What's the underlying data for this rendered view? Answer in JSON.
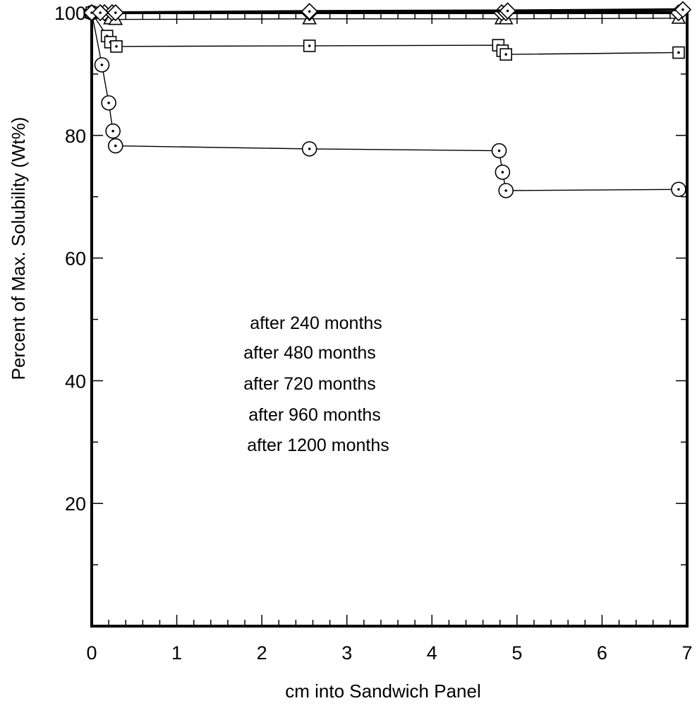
{
  "chart_data": {
    "type": "line",
    "title": "",
    "xlabel": "cm into Sandwich Panel",
    "ylabel": "Percent of Max. Solubility (Wt%)",
    "xlim": [
      0,
      7
    ],
    "ylim": [
      0,
      100
    ],
    "xticks": [
      0,
      1,
      2,
      3,
      4,
      5,
      6,
      7
    ],
    "xtick_labels": [
      "0",
      "1",
      "2",
      "3",
      "4",
      "5",
      "6",
      "7"
    ],
    "yticks": [
      20,
      40,
      60,
      80,
      100
    ],
    "ytick_labels": [
      "20",
      "40",
      "60",
      "80",
      "100"
    ],
    "grid": false,
    "legend": {
      "placement": "center-left",
      "entries": [
        "after 240 months",
        "after 480 months",
        "after 720 months",
        "after 960 months",
        "after 1200 months"
      ],
      "markers_shown": false
    },
    "series": [
      {
        "name": "after 240 months",
        "marker": "circle-dot",
        "points": [
          [
            0.0,
            100.0
          ],
          [
            0.12,
            91.5
          ],
          [
            0.2,
            85.3
          ],
          [
            0.25,
            80.7
          ],
          [
            0.28,
            78.3
          ],
          [
            2.56,
            77.8
          ],
          [
            4.79,
            77.5
          ],
          [
            4.83,
            74.0
          ],
          [
            4.87,
            71.0
          ],
          [
            6.9,
            71.2
          ]
        ]
      },
      {
        "name": "after 480 months",
        "marker": "square-dot",
        "points": [
          [
            0.0,
            100.0
          ],
          [
            0.18,
            96.2
          ],
          [
            0.22,
            95.2
          ],
          [
            0.29,
            94.5
          ],
          [
            2.56,
            94.6
          ],
          [
            4.78,
            94.7
          ],
          [
            4.83,
            93.8
          ],
          [
            4.87,
            93.2
          ],
          [
            6.9,
            93.5
          ]
        ]
      },
      {
        "name": "after 720 months",
        "marker": "triangle",
        "points": [
          [
            0.0,
            100.0
          ],
          [
            0.22,
            99.0
          ],
          [
            0.28,
            98.9
          ],
          [
            2.56,
            99.0
          ],
          [
            4.82,
            99.0
          ],
          [
            4.87,
            99.0
          ],
          [
            6.9,
            99.1
          ]
        ]
      },
      {
        "name": "after 960 months",
        "marker": "diamond",
        "points": [
          [
            0.0,
            100.0
          ],
          [
            0.15,
            100.0
          ],
          [
            0.24,
            100.0
          ],
          [
            2.56,
            100.0
          ],
          [
            4.82,
            100.0
          ],
          [
            4.87,
            100.0
          ],
          [
            6.9,
            100.0
          ]
        ]
      },
      {
        "name": "after 1200 months",
        "marker": "diamond-dot",
        "points": [
          [
            0.0,
            100.0
          ],
          [
            0.1,
            100.0
          ],
          [
            0.28,
            100.0
          ],
          [
            2.56,
            100.2
          ],
          [
            4.89,
            100.3
          ],
          [
            6.95,
            100.5
          ]
        ]
      }
    ]
  }
}
